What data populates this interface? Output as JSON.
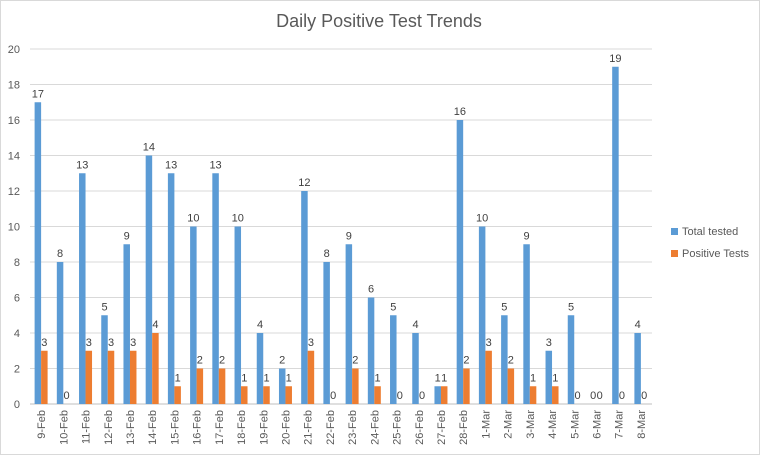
{
  "chart_data": {
    "type": "bar",
    "title": "Daily Positive Test Trends",
    "categories": [
      "9-Feb",
      "10-Feb",
      "11-Feb",
      "12-Feb",
      "13-Feb",
      "14-Feb",
      "15-Feb",
      "16-Feb",
      "17-Feb",
      "18-Feb",
      "19-Feb",
      "20-Feb",
      "21-Feb",
      "22-Feb",
      "23-Feb",
      "24-Feb",
      "25-Feb",
      "26-Feb",
      "27-Feb",
      "28-Feb",
      "1-Mar",
      "2-Mar",
      "3-Mar",
      "4-Mar",
      "5-Mar",
      "6-Mar",
      "7-Mar",
      "8-Mar"
    ],
    "series": [
      {
        "name": "Total tested",
        "color": "#5b9bd5",
        "values": [
          17,
          8,
          13,
          5,
          9,
          14,
          13,
          10,
          13,
          10,
          4,
          2,
          12,
          8,
          9,
          6,
          5,
          4,
          1,
          16,
          10,
          5,
          9,
          3,
          5,
          0,
          19,
          4
        ]
      },
      {
        "name": "Positive Tests",
        "color": "#ed7d31",
        "values": [
          3,
          0,
          3,
          3,
          3,
          4,
          1,
          2,
          2,
          1,
          1,
          1,
          3,
          0,
          2,
          1,
          0,
          0,
          1,
          2,
          3,
          2,
          1,
          1,
          0,
          0,
          0,
          0
        ]
      }
    ],
    "ylim": [
      0,
      20
    ],
    "yticks": [
      0,
      2,
      4,
      6,
      8,
      10,
      12,
      14,
      16,
      18,
      20
    ],
    "grid": true,
    "legend_position": "right",
    "xlabel": "",
    "ylabel": ""
  }
}
